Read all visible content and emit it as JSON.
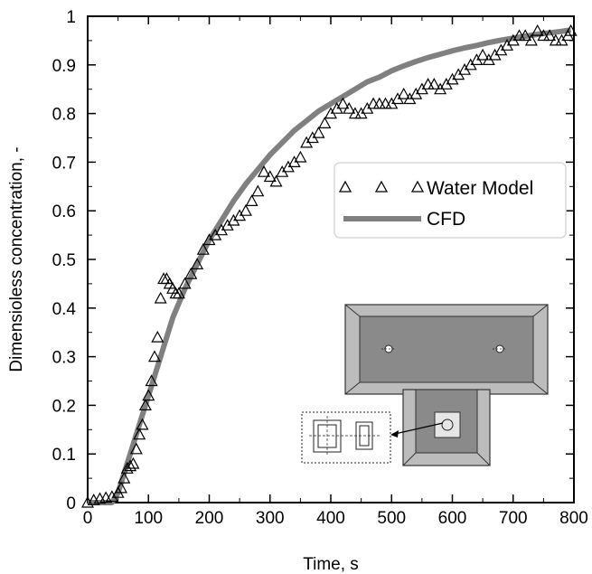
{
  "chart_data": {
    "type": "line",
    "xlabel": "Time, s",
    "ylabel": "Dimensioless concentration, -",
    "xlim": [
      0,
      800
    ],
    "ylim": [
      0,
      1
    ],
    "x_ticks": [
      "0",
      "100",
      "200",
      "300",
      "400",
      "500",
      "600",
      "700",
      "800"
    ],
    "y_ticks": [
      "0",
      "0.1",
      "0.2",
      "0.3",
      "0.4",
      "0.5",
      "0.6",
      "0.7",
      "0.8",
      "0.9",
      "1"
    ],
    "legend_position": "right-middle",
    "series": [
      {
        "name": "Water Model",
        "style": "triangle-markers",
        "x": [
          0,
          10,
          20,
          30,
          40,
          50,
          55,
          60,
          65,
          70,
          75,
          80,
          85,
          90,
          95,
          100,
          105,
          110,
          115,
          120,
          125,
          130,
          135,
          140,
          145,
          150,
          160,
          170,
          180,
          190,
          200,
          210,
          220,
          230,
          240,
          250,
          260,
          270,
          280,
          290,
          300,
          310,
          320,
          330,
          340,
          350,
          360,
          370,
          380,
          390,
          400,
          410,
          420,
          430,
          440,
          450,
          460,
          470,
          480,
          490,
          500,
          510,
          520,
          530,
          540,
          550,
          560,
          570,
          580,
          590,
          600,
          610,
          620,
          630,
          640,
          650,
          660,
          670,
          680,
          690,
          700,
          710,
          720,
          730,
          740,
          750,
          760,
          770,
          780,
          790,
          795
        ],
        "y": [
          0.0,
          0.005,
          0.008,
          0.01,
          0.012,
          0.02,
          0.03,
          0.05,
          0.07,
          0.075,
          0.08,
          0.11,
          0.14,
          0.16,
          0.2,
          0.22,
          0.25,
          0.3,
          0.34,
          0.42,
          0.46,
          0.46,
          0.45,
          0.44,
          0.43,
          0.43,
          0.45,
          0.47,
          0.49,
          0.52,
          0.54,
          0.55,
          0.56,
          0.57,
          0.58,
          0.59,
          0.6,
          0.62,
          0.64,
          0.68,
          0.67,
          0.66,
          0.68,
          0.69,
          0.7,
          0.71,
          0.74,
          0.75,
          0.76,
          0.78,
          0.8,
          0.81,
          0.82,
          0.81,
          0.8,
          0.8,
          0.81,
          0.82,
          0.82,
          0.82,
          0.82,
          0.83,
          0.84,
          0.83,
          0.84,
          0.85,
          0.86,
          0.86,
          0.85,
          0.86,
          0.87,
          0.88,
          0.89,
          0.9,
          0.91,
          0.92,
          0.91,
          0.92,
          0.93,
          0.94,
          0.95,
          0.96,
          0.96,
          0.95,
          0.97,
          0.96,
          0.96,
          0.95,
          0.95,
          0.96,
          0.97
        ]
      },
      {
        "name": "CFD",
        "style": "thick-gray-line",
        "x": [
          0,
          20,
          40,
          50,
          60,
          70,
          80,
          90,
          100,
          110,
          120,
          130,
          140,
          150,
          160,
          180,
          200,
          220,
          240,
          260,
          280,
          300,
          320,
          340,
          360,
          380,
          400,
          420,
          440,
          460,
          480,
          500,
          520,
          540,
          560,
          580,
          600,
          620,
          640,
          660,
          680,
          700,
          720,
          740,
          760,
          780,
          795
        ],
        "y": [
          0.0,
          0.0,
          0.0,
          0.02,
          0.06,
          0.1,
          0.14,
          0.18,
          0.22,
          0.26,
          0.3,
          0.34,
          0.38,
          0.41,
          0.44,
          0.49,
          0.54,
          0.58,
          0.62,
          0.655,
          0.685,
          0.715,
          0.74,
          0.765,
          0.785,
          0.805,
          0.82,
          0.835,
          0.85,
          0.865,
          0.875,
          0.888,
          0.898,
          0.907,
          0.915,
          0.922,
          0.929,
          0.935,
          0.94,
          0.946,
          0.951,
          0.955,
          0.959,
          0.963,
          0.966,
          0.969,
          0.972
        ]
      }
    ]
  },
  "colors": {
    "cfd_line": "#808080",
    "markers": "#000000",
    "inset_fill": "#8a8a8a",
    "inset_rim": "#c8c8c8"
  }
}
